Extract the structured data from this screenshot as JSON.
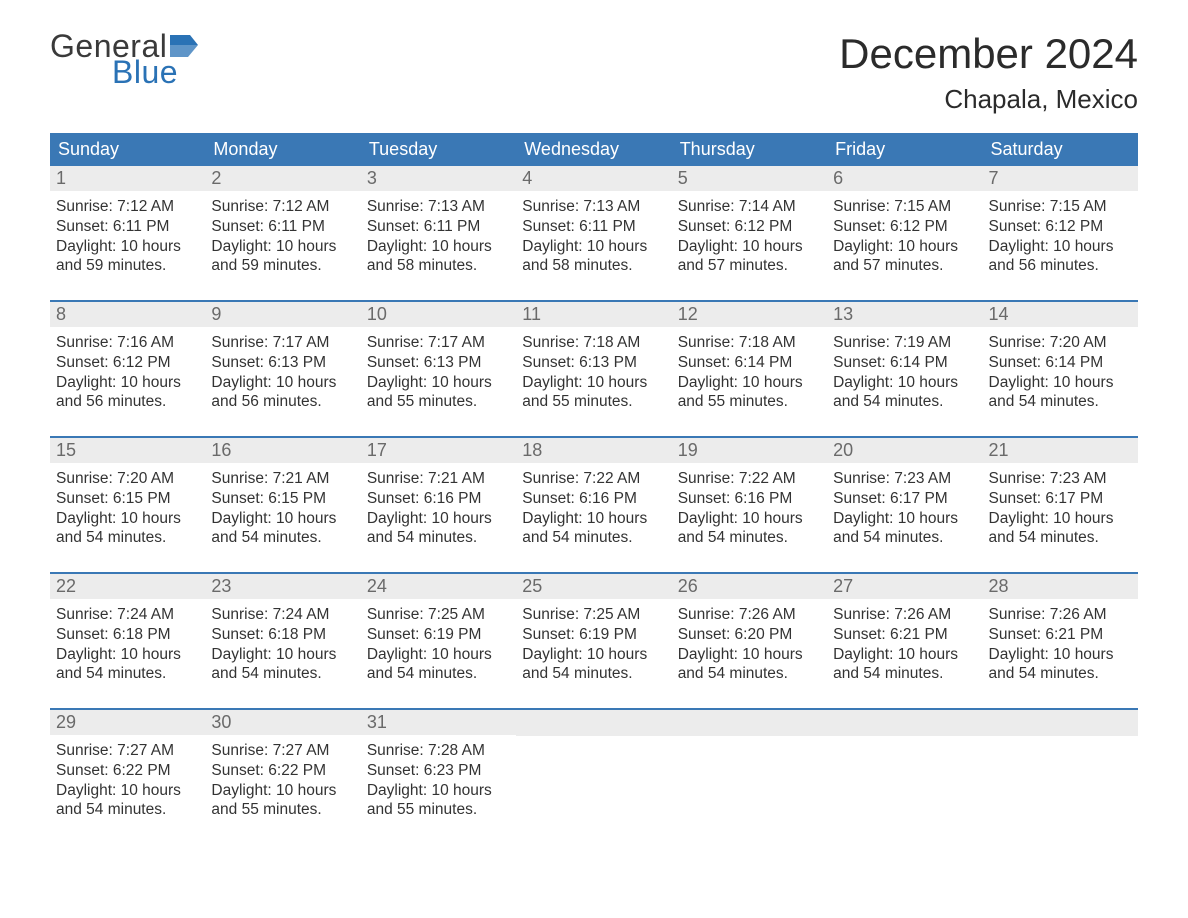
{
  "logo": {
    "text_general": "General",
    "text_blue": "Blue",
    "flag_color": "#2a72b5"
  },
  "title": "December 2024",
  "location": "Chapala, Mexico",
  "colors": {
    "header_bg": "#3a78b5",
    "header_text": "#ffffff",
    "daynum_bg": "#ececec",
    "daynum_text": "#6a6a6a",
    "body_text": "#333333",
    "row_border": "#3a78b5",
    "page_bg": "#ffffff"
  },
  "day_labels": [
    "Sunday",
    "Monday",
    "Tuesday",
    "Wednesday",
    "Thursday",
    "Friday",
    "Saturday"
  ],
  "weeks": [
    [
      {
        "n": "1",
        "sr": "7:12 AM",
        "ss": "6:11 PM",
        "dl": "10 hours and 59 minutes."
      },
      {
        "n": "2",
        "sr": "7:12 AM",
        "ss": "6:11 PM",
        "dl": "10 hours and 59 minutes."
      },
      {
        "n": "3",
        "sr": "7:13 AM",
        "ss": "6:11 PM",
        "dl": "10 hours and 58 minutes."
      },
      {
        "n": "4",
        "sr": "7:13 AM",
        "ss": "6:11 PM",
        "dl": "10 hours and 58 minutes."
      },
      {
        "n": "5",
        "sr": "7:14 AM",
        "ss": "6:12 PM",
        "dl": "10 hours and 57 minutes."
      },
      {
        "n": "6",
        "sr": "7:15 AM",
        "ss": "6:12 PM",
        "dl": "10 hours and 57 minutes."
      },
      {
        "n": "7",
        "sr": "7:15 AM",
        "ss": "6:12 PM",
        "dl": "10 hours and 56 minutes."
      }
    ],
    [
      {
        "n": "8",
        "sr": "7:16 AM",
        "ss": "6:12 PM",
        "dl": "10 hours and 56 minutes."
      },
      {
        "n": "9",
        "sr": "7:17 AM",
        "ss": "6:13 PM",
        "dl": "10 hours and 56 minutes."
      },
      {
        "n": "10",
        "sr": "7:17 AM",
        "ss": "6:13 PM",
        "dl": "10 hours and 55 minutes."
      },
      {
        "n": "11",
        "sr": "7:18 AM",
        "ss": "6:13 PM",
        "dl": "10 hours and 55 minutes."
      },
      {
        "n": "12",
        "sr": "7:18 AM",
        "ss": "6:14 PM",
        "dl": "10 hours and 55 minutes."
      },
      {
        "n": "13",
        "sr": "7:19 AM",
        "ss": "6:14 PM",
        "dl": "10 hours and 54 minutes."
      },
      {
        "n": "14",
        "sr": "7:20 AM",
        "ss": "6:14 PM",
        "dl": "10 hours and 54 minutes."
      }
    ],
    [
      {
        "n": "15",
        "sr": "7:20 AM",
        "ss": "6:15 PM",
        "dl": "10 hours and 54 minutes."
      },
      {
        "n": "16",
        "sr": "7:21 AM",
        "ss": "6:15 PM",
        "dl": "10 hours and 54 minutes."
      },
      {
        "n": "17",
        "sr": "7:21 AM",
        "ss": "6:16 PM",
        "dl": "10 hours and 54 minutes."
      },
      {
        "n": "18",
        "sr": "7:22 AM",
        "ss": "6:16 PM",
        "dl": "10 hours and 54 minutes."
      },
      {
        "n": "19",
        "sr": "7:22 AM",
        "ss": "6:16 PM",
        "dl": "10 hours and 54 minutes."
      },
      {
        "n": "20",
        "sr": "7:23 AM",
        "ss": "6:17 PM",
        "dl": "10 hours and 54 minutes."
      },
      {
        "n": "21",
        "sr": "7:23 AM",
        "ss": "6:17 PM",
        "dl": "10 hours and 54 minutes."
      }
    ],
    [
      {
        "n": "22",
        "sr": "7:24 AM",
        "ss": "6:18 PM",
        "dl": "10 hours and 54 minutes."
      },
      {
        "n": "23",
        "sr": "7:24 AM",
        "ss": "6:18 PM",
        "dl": "10 hours and 54 minutes."
      },
      {
        "n": "24",
        "sr": "7:25 AM",
        "ss": "6:19 PM",
        "dl": "10 hours and 54 minutes."
      },
      {
        "n": "25",
        "sr": "7:25 AM",
        "ss": "6:19 PM",
        "dl": "10 hours and 54 minutes."
      },
      {
        "n": "26",
        "sr": "7:26 AM",
        "ss": "6:20 PM",
        "dl": "10 hours and 54 minutes."
      },
      {
        "n": "27",
        "sr": "7:26 AM",
        "ss": "6:21 PM",
        "dl": "10 hours and 54 minutes."
      },
      {
        "n": "28",
        "sr": "7:26 AM",
        "ss": "6:21 PM",
        "dl": "10 hours and 54 minutes."
      }
    ],
    [
      {
        "n": "29",
        "sr": "7:27 AM",
        "ss": "6:22 PM",
        "dl": "10 hours and 54 minutes."
      },
      {
        "n": "30",
        "sr": "7:27 AM",
        "ss": "6:22 PM",
        "dl": "10 hours and 55 minutes."
      },
      {
        "n": "31",
        "sr": "7:28 AM",
        "ss": "6:23 PM",
        "dl": "10 hours and 55 minutes."
      },
      null,
      null,
      null,
      null
    ]
  ],
  "labels": {
    "sunrise": "Sunrise: ",
    "sunset": "Sunset: ",
    "daylight": "Daylight: "
  }
}
